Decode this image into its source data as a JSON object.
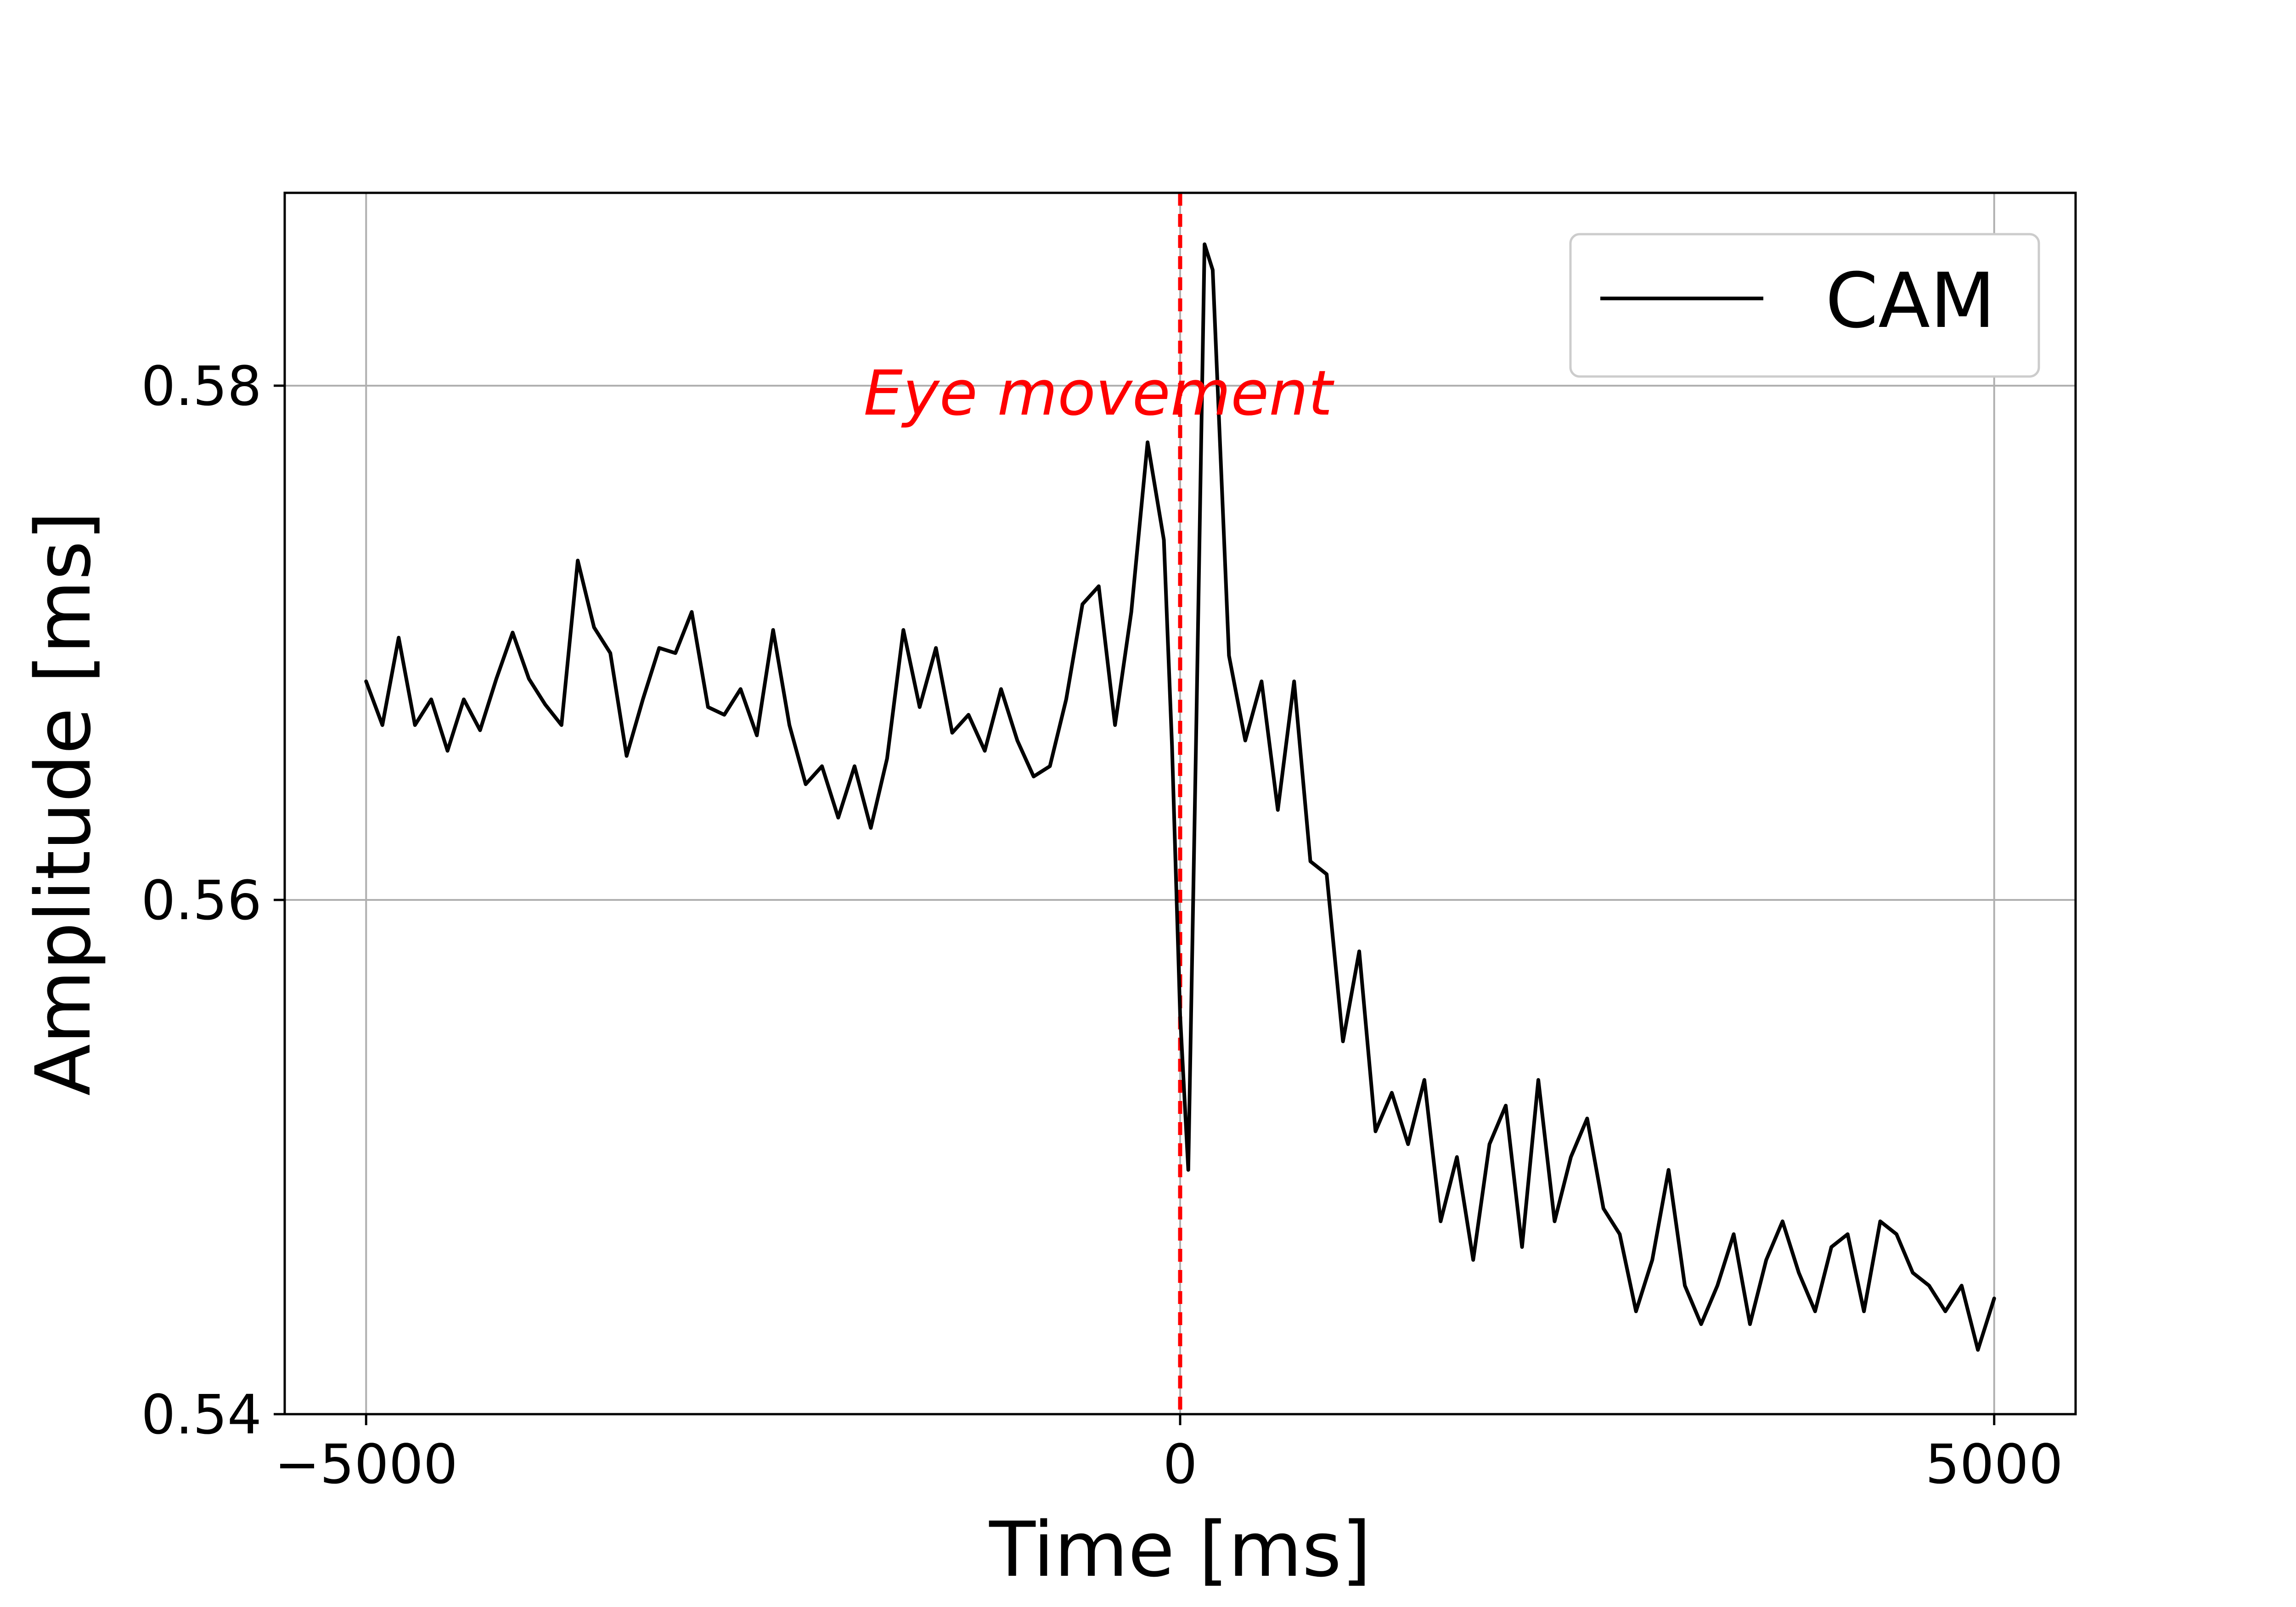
{
  "chart_data": {
    "type": "line",
    "xlabel": "Time [ms]",
    "ylabel": "Amplitude [ms]",
    "xlim": [
      -5500,
      5500
    ],
    "ylim": [
      0.54,
      0.5875
    ],
    "x_ticks": [
      -5000,
      0,
      5000
    ],
    "x_tick_labels": [
      "−5000",
      "0",
      "5000"
    ],
    "y_ticks": [
      0.54,
      0.56,
      0.58
    ],
    "y_tick_labels": [
      "0.54",
      "0.56",
      "0.58"
    ],
    "grid": true,
    "legend_position": "top-right",
    "series": [
      {
        "name": "CAM",
        "color": "#000000",
        "x": [
          -5000,
          -4900,
          -4800,
          -4700,
          -4600,
          -4500,
          -4400,
          -4300,
          -4200,
          -4100,
          -4000,
          -3900,
          -3800,
          -3700,
          -3600,
          -3500,
          -3400,
          -3300,
          -3200,
          -3100,
          -3000,
          -2900,
          -2800,
          -2700,
          -2600,
          -2500,
          -2400,
          -2300,
          -2200,
          -2100,
          -2000,
          -1900,
          -1800,
          -1700,
          -1600,
          -1500,
          -1400,
          -1300,
          -1200,
          -1100,
          -1000,
          -900,
          -800,
          -700,
          -600,
          -500,
          -400,
          -300,
          -200,
          -100,
          -50,
          0,
          50,
          100,
          150,
          200,
          300,
          400,
          500,
          600,
          700,
          800,
          900,
          1000,
          1100,
          1200,
          1300,
          1400,
          1500,
          1600,
          1700,
          1800,
          1900,
          2000,
          2100,
          2200,
          2300,
          2400,
          2500,
          2600,
          2700,
          2800,
          2900,
          3000,
          3100,
          3200,
          3300,
          3400,
          3500,
          3600,
          3700,
          3800,
          3900,
          4000,
          4100,
          4200,
          4300,
          4400,
          4500,
          4600,
          4700,
          4800,
          4900,
          5000
        ],
        "values": [
          0.5685,
          0.5668,
          0.5702,
          0.5668,
          0.5678,
          0.5658,
          0.5678,
          0.5666,
          0.5686,
          0.5704,
          0.5686,
          0.5676,
          0.5668,
          0.5732,
          0.5706,
          0.5696,
          0.5656,
          0.5678,
          0.5698,
          0.5696,
          0.5712,
          0.5675,
          0.5672,
          0.5682,
          0.5664,
          0.5705,
          0.5668,
          0.5645,
          0.5652,
          0.5632,
          0.5652,
          0.5628,
          0.5655,
          0.5705,
          0.5675,
          0.5698,
          0.5665,
          0.5672,
          0.5658,
          0.5682,
          0.5662,
          0.5648,
          0.5652,
          0.5678,
          0.5715,
          0.5722,
          0.5668,
          0.5712,
          0.5778,
          0.574,
          0.566,
          0.5555,
          0.5495,
          0.567,
          0.5855,
          0.5845,
          0.5695,
          0.5662,
          0.5685,
          0.5635,
          0.5685,
          0.5615,
          0.561,
          0.5545,
          0.558,
          0.551,
          0.5525,
          0.5505,
          0.553,
          0.5475,
          0.55,
          0.546,
          0.5505,
          0.552,
          0.5465,
          0.553,
          0.5475,
          0.55,
          0.5515,
          0.548,
          0.547,
          0.544,
          0.546,
          0.5495,
          0.545,
          0.5435,
          0.545,
          0.547,
          0.5435,
          0.546,
          0.5475,
          0.5455,
          0.544,
          0.5465,
          0.547,
          0.544,
          0.5475,
          0.547,
          0.5455,
          0.545,
          0.544,
          0.545,
          0.5425,
          0.5445
        ]
      }
    ],
    "annotations": [
      {
        "text": "Eye movement",
        "x": -2900,
        "y": 0.5795,
        "color": "#ff0000"
      }
    ],
    "vlines": [
      {
        "x": 0,
        "color": "#ff0000",
        "style": "dashed"
      }
    ]
  }
}
